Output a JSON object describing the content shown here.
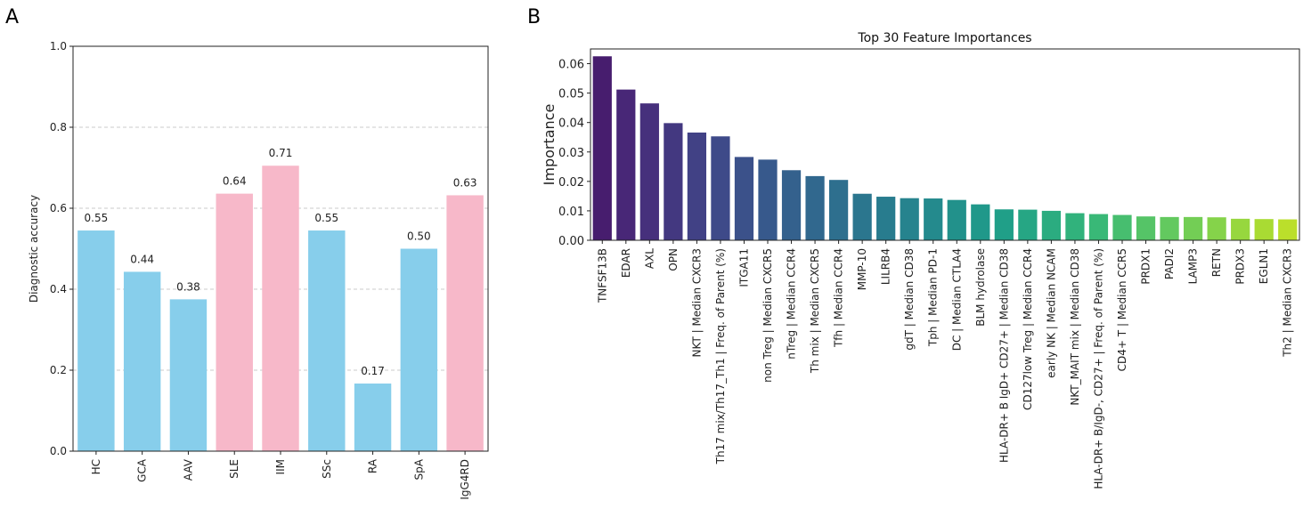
{
  "panels": {
    "a": "A",
    "b": "B"
  },
  "chart_data": [
    {
      "type": "bar",
      "title": "",
      "xlabel": "",
      "ylabel": "Diagnostic accuracy",
      "ylim": [
        0,
        1.0
      ],
      "yticks": [
        0.0,
        0.2,
        0.4,
        0.6,
        0.8,
        1.0
      ],
      "ytick_labels": [
        "0.0",
        "0.2",
        "0.4",
        "0.6",
        "0.8",
        "1.0"
      ],
      "grid": "horizontal dashed",
      "categories": [
        "HC",
        "GCA",
        "AAV",
        "SLE",
        "IIM",
        "SSc",
        "RA",
        "SpA",
        "IgG4RD"
      ],
      "values": [
        0.545,
        0.443,
        0.375,
        0.636,
        0.705,
        0.545,
        0.167,
        0.5,
        0.632
      ],
      "data_labels": [
        "0.55",
        "0.44",
        "0.38",
        "0.64",
        "0.71",
        "0.55",
        "0.17",
        "0.50",
        "0.63"
      ],
      "colors": [
        "#87ceeb",
        "#87ceeb",
        "#87ceeb",
        "#f7b8c9",
        "#f7b8c9",
        "#87ceeb",
        "#87ceeb",
        "#87ceeb",
        "#f7b8c9"
      ]
    },
    {
      "type": "bar",
      "title": "Top 30 Feature Importances",
      "xlabel": "",
      "ylabel": "Importance",
      "ylim": [
        0,
        0.065
      ],
      "yticks": [
        0.0,
        0.01,
        0.02,
        0.03,
        0.04,
        0.05,
        0.06
      ],
      "ytick_labels": [
        "0.00",
        "0.01",
        "0.02",
        "0.03",
        "0.04",
        "0.05",
        "0.06"
      ],
      "grid": "off",
      "colormap": "viridis",
      "categories": [
        "TNFSF13B",
        "EDAR",
        "AXL",
        "OPN",
        "NKT | Median CXCR3",
        "Th17 mix/Th17_Th1 | Freq. of Parent (%)",
        "ITGA11",
        "non Treg | Median CXCR5",
        "nTreg | Median CCR4",
        "Th mix | Median CXCR5",
        "Tfh | Median CCR4",
        "MMP-10",
        "LILRB4",
        "gdT | Median CD38",
        "Tph | Median PD-1",
        "DC | Median CTLA4",
        "BLM hydrolase",
        "HLA-DR+ B IgD+ CD27+ | Median CD38",
        "CD127low Treg | Median CCR4",
        "early NK | Median NCAM",
        "NKT_MAIT mix | Median CD38",
        "HLA-DR+ B/IgD-, CD27+ | Freq. of Parent (%)",
        "CD4+ T | Median CCR5",
        "PRDX1",
        "PADI2",
        "LAMP3",
        "RETN",
        "PRDX3",
        "EGLN1",
        "Th2 | Median CXCR3"
      ],
      "values": [
        0.0625,
        0.0512,
        0.0465,
        0.0398,
        0.0366,
        0.0353,
        0.0283,
        0.0274,
        0.0238,
        0.0218,
        0.0205,
        0.0158,
        0.0148,
        0.0143,
        0.0142,
        0.0137,
        0.0122,
        0.0105,
        0.0104,
        0.01,
        0.0092,
        0.0089,
        0.0086,
        0.0081,
        0.0079,
        0.0079,
        0.0078,
        0.0073,
        0.0072,
        0.0071
      ]
    }
  ]
}
